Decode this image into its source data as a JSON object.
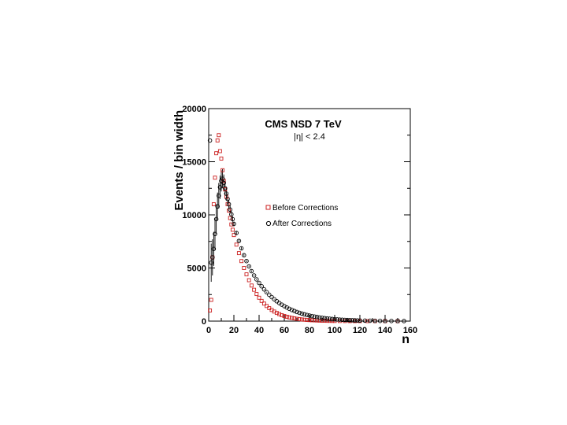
{
  "chart_data": {
    "type": "scatter",
    "title": "CMS NSD 7 TeV",
    "subtitle": "|η| < 2.4",
    "xlabel": "n",
    "ylabel": "Events / bin width",
    "xlim": [
      0,
      160
    ],
    "ylim": [
      0,
      20000
    ],
    "x_ticks": [
      "0",
      "20",
      "40",
      "60",
      "80",
      "100",
      "120",
      "140",
      "160"
    ],
    "y_ticks": [
      "0",
      "5000",
      "10000",
      "15000",
      "20000"
    ],
    "legend_position": "center-right",
    "grid": false,
    "series": [
      {
        "name": "Before Corrections",
        "marker": "open-square",
        "color": "#cc2222",
        "x": [
          1,
          2,
          3,
          4,
          5,
          6,
          7,
          8,
          9,
          10,
          11,
          12,
          13,
          14,
          15,
          16,
          17,
          18,
          19,
          20,
          22,
          24,
          26,
          28,
          30,
          32,
          34,
          36,
          38,
          40,
          42,
          44,
          46,
          48,
          50,
          52,
          54,
          56,
          58,
          60,
          62,
          64,
          66,
          68,
          70,
          72,
          74,
          76,
          78,
          80,
          82,
          84,
          86,
          88,
          90,
          92,
          94,
          96,
          98,
          100,
          104,
          108,
          112,
          116,
          120,
          126,
          132,
          140,
          150
        ],
        "y": [
          1000,
          2000,
          6000,
          11000,
          13500,
          15800,
          17000,
          17500,
          16000,
          15300,
          14200,
          13200,
          12400,
          11700,
          11000,
          10400,
          9700,
          9100,
          8600,
          8100,
          7200,
          6400,
          5650,
          5000,
          4400,
          3850,
          3350,
          2950,
          2550,
          2200,
          1900,
          1650,
          1420,
          1220,
          1050,
          900,
          770,
          660,
          560,
          480,
          410,
          350,
          300,
          255,
          215,
          185,
          155,
          130,
          110,
          95,
          80,
          68,
          58,
          48,
          40,
          34,
          28,
          24,
          20,
          16,
          11,
          8,
          5,
          4,
          3,
          2,
          1,
          1,
          0
        ]
      },
      {
        "name": "After Corrections",
        "marker": "open-circle",
        "color": "#000000",
        "x": [
          1,
          2,
          3,
          4,
          5,
          6,
          7,
          8,
          9,
          10,
          11,
          12,
          13,
          14,
          15,
          16,
          17,
          18,
          19,
          20,
          22,
          24,
          26,
          28,
          30,
          32,
          34,
          36,
          38,
          40,
          42,
          44,
          46,
          48,
          50,
          52,
          54,
          56,
          58,
          60,
          62,
          64,
          66,
          68,
          70,
          72,
          74,
          76,
          78,
          80,
          82,
          84,
          86,
          88,
          90,
          92,
          94,
          96,
          98,
          100,
          102,
          104,
          106,
          108,
          110,
          112,
          114,
          116,
          118,
          120,
          124,
          128,
          132,
          136,
          140,
          145,
          150,
          155
        ],
        "y": [
          17000,
          5500,
          6000,
          6800,
          8200,
          9600,
          10800,
          11800,
          12600,
          13200,
          13400,
          13000,
          12500,
          12000,
          11500,
          11000,
          10500,
          10050,
          9600,
          9150,
          8300,
          7550,
          6850,
          6200,
          5650,
          5150,
          4700,
          4300,
          3930,
          3590,
          3280,
          2990,
          2720,
          2480,
          2260,
          2060,
          1870,
          1700,
          1550,
          1410,
          1280,
          1160,
          1050,
          950,
          860,
          780,
          700,
          635,
          575,
          520,
          470,
          425,
          385,
          345,
          310,
          280,
          250,
          225,
          200,
          180,
          160,
          143,
          128,
          114,
          102,
          90,
          80,
          71,
          63,
          56,
          45,
          36,
          28,
          22,
          17,
          12,
          9,
          6
        ],
        "error": [
          0,
          1800,
          1700,
          1600,
          1500,
          1400,
          1300,
          1200,
          1100,
          1000,
          900,
          800,
          700,
          600,
          500,
          420,
          360,
          300,
          250,
          220,
          180,
          150,
          120,
          100,
          90,
          80,
          70,
          60,
          55,
          50,
          45,
          40,
          36,
          32,
          28,
          25,
          22,
          20,
          18,
          16,
          14,
          12,
          11,
          10,
          9,
          8,
          7,
          6,
          6,
          5,
          5,
          4,
          4,
          3,
          3,
          3,
          2,
          2,
          2,
          2,
          2,
          2,
          1,
          1,
          1,
          1,
          1,
          1,
          1,
          1,
          1,
          1,
          1,
          1,
          1,
          1,
          1,
          1
        ]
      }
    ]
  }
}
